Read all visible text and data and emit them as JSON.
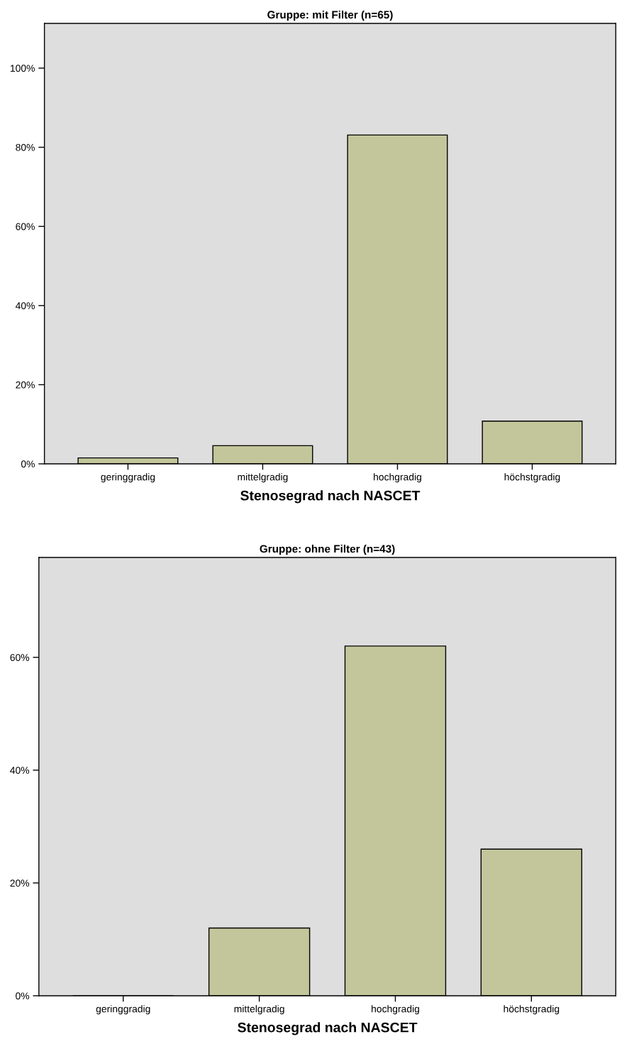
{
  "chart_data": [
    {
      "type": "bar",
      "title": "Gruppe: mit Filter (n=65)",
      "xlabel": "Stenosegrad nach NASCET",
      "categories": [
        "geringgradig",
        "mittelgradig",
        "hochgradig",
        "höchstgradig"
      ],
      "values": [
        1.5,
        4.6,
        83.1,
        10.8
      ],
      "color": "#c2c69a",
      "ylim": [
        0,
        111.3
      ],
      "yticks": [
        {
          "value": 0,
          "label": "0%"
        },
        {
          "value": 20,
          "label": "20%"
        },
        {
          "value": 40,
          "label": "40%"
        },
        {
          "value": 60,
          "label": "60%"
        },
        {
          "value": 80,
          "label": "80%"
        },
        {
          "value": 100,
          "label": "100%"
        }
      ],
      "grid": false
    },
    {
      "type": "bar",
      "title": "Gruppe: ohne Filter (n=43)",
      "xlabel": "Stenosegrad nach NASCET",
      "categories": [
        "geringgradig",
        "mittelgradig",
        "hochgradig",
        "höchstgradig"
      ],
      "values": [
        0,
        12,
        62,
        26
      ],
      "color": "#c2c69a",
      "ylim": [
        0,
        77.7
      ],
      "yticks": [
        {
          "value": 0,
          "label": "0%"
        },
        {
          "value": 20,
          "label": "20%"
        },
        {
          "value": 40,
          "label": "40%"
        },
        {
          "value": 60,
          "label": "60%"
        }
      ],
      "grid": false
    }
  ]
}
